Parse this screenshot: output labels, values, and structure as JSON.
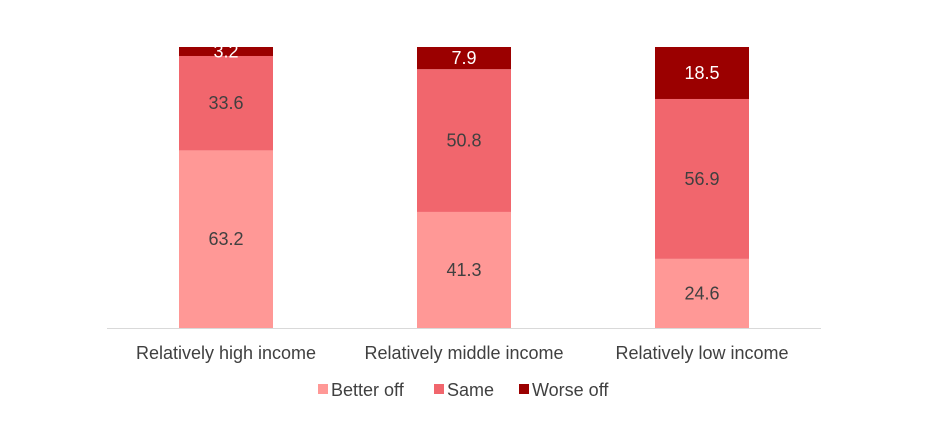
{
  "chart_data": {
    "type": "bar",
    "stacked": true,
    "normalized_percent": true,
    "categories": [
      "Relatively high income",
      "Relatively middle income",
      "Relatively low income"
    ],
    "series": [
      {
        "name": "Better off",
        "values": [
          63.2,
          41.3,
          24.6
        ],
        "color": "#ff9896",
        "label_color": "#404040"
      },
      {
        "name": "Same",
        "values": [
          33.6,
          50.8,
          56.9
        ],
        "color": "#f1666d",
        "label_color": "#404040"
      },
      {
        "name": "Worse off",
        "values": [
          3.2,
          7.9,
          18.5
        ],
        "color": "#9b0000",
        "label_color": "#ffffff"
      }
    ],
    "ylim": [
      0,
      100
    ],
    "grid": false,
    "legend_position": "bottom",
    "axis_color": "#d9d9d9"
  }
}
